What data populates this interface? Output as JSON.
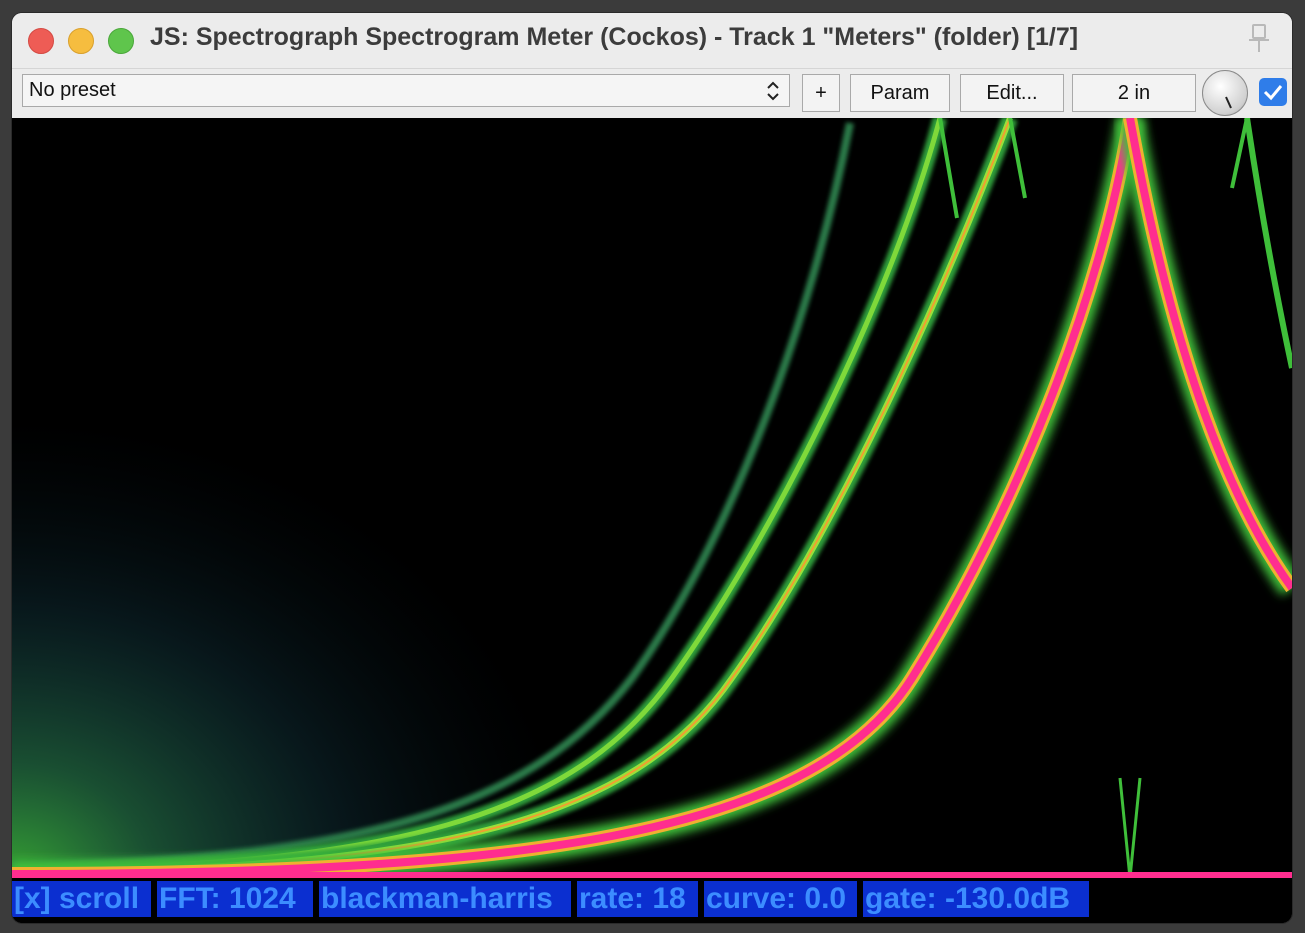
{
  "window": {
    "title": "JS: Spectrograph Spectrogram Meter (Cockos) - Track 1 \"Meters\" (folder) [1/7]"
  },
  "toolbar": {
    "preset_value": "No preset",
    "add_label": "+",
    "param_label": "Param",
    "edit_label": "Edit...",
    "io_label": "2 in",
    "enabled": true
  },
  "status": {
    "scroll": "[x] scroll",
    "fft": "FFT: 1024",
    "window_fn": "blackman-harris",
    "rate": "rate: 18",
    "curve": "curve: 0.0",
    "gate": "gate: -130.0dB"
  },
  "colors": {
    "background": "#000000",
    "status_bg": "#0b2fd0",
    "status_text": "#3c8dff",
    "harmonic_green": "#3fbf3a",
    "fundamental_pink": "#ff2d8f",
    "noise": "#1e5a6a"
  },
  "icons": {
    "pin": "pin-icon",
    "preset_arrows": "updown-chevron-icon",
    "knob": "wet-knob",
    "checkbox": "checkmark-icon"
  }
}
